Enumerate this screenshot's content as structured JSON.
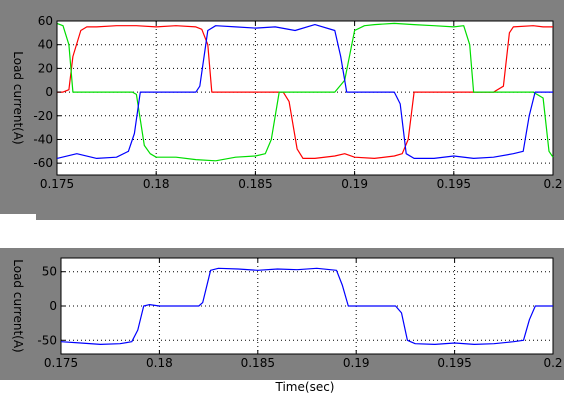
{
  "chart_data": [
    {
      "type": "line",
      "title": "",
      "xlabel": "",
      "ylabel": "Load current(A)",
      "xlim": [
        0.175,
        0.2
      ],
      "ylim": [
        -70,
        60
      ],
      "grid": true,
      "xticks": [
        "0.175",
        "0.18",
        "0.185",
        "0.19",
        "0.195",
        "0.2"
      ],
      "yticks": [
        "60",
        "40",
        "20",
        "0",
        "-20",
        "-40",
        "-60"
      ],
      "series": [
        {
          "color": "#ff0000",
          "x": [
            0.175,
            0.1753,
            0.1756,
            0.1758,
            0.1762,
            0.1765,
            0.177,
            0.178,
            0.179,
            0.18,
            0.181,
            0.182,
            0.1823,
            0.1826,
            0.1828,
            0.1831,
            0.184,
            0.185,
            0.186,
            0.1864,
            0.1867,
            0.1871,
            0.1874,
            0.188,
            0.189,
            0.1895,
            0.19,
            0.191,
            0.192,
            0.1924,
            0.1927,
            0.193,
            0.1934,
            0.194,
            0.195,
            0.196,
            0.197,
            0.1975,
            0.1978,
            0.198,
            0.199,
            0.1995,
            0.2
          ],
          "y": [
            0,
            0,
            2,
            30,
            52,
            55,
            55,
            56,
            56,
            55,
            56,
            55,
            53,
            40,
            0,
            0,
            0,
            0,
            0,
            0,
            -8,
            -48,
            -56,
            -56,
            -54,
            -52,
            -55,
            -56,
            -54,
            -52,
            -40,
            0,
            0,
            0,
            0,
            0,
            0,
            5,
            50,
            55,
            56,
            55,
            55
          ]
        },
        {
          "color": "#00dd00",
          "x": [
            0.175,
            0.1753,
            0.1756,
            0.1758,
            0.176,
            0.177,
            0.178,
            0.1788,
            0.179,
            0.1794,
            0.1797,
            0.18,
            0.181,
            0.182,
            0.183,
            0.184,
            0.185,
            0.1855,
            0.1858,
            0.1862,
            0.1865,
            0.187,
            0.188,
            0.189,
            0.1895,
            0.19,
            0.1905,
            0.191,
            0.192,
            0.193,
            0.194,
            0.195,
            0.1955,
            0.1958,
            0.196,
            0.1962,
            0.197,
            0.198,
            0.199,
            0.1995,
            0.1998,
            0.2
          ],
          "y": [
            58,
            56,
            40,
            0,
            0,
            0,
            0,
            0,
            -2,
            -45,
            -52,
            -55,
            -55,
            -57,
            -58,
            -55,
            -54,
            -52,
            -40,
            0,
            0,
            0,
            0,
            0,
            10,
            52,
            56,
            57,
            58,
            57,
            56,
            55,
            56,
            40,
            0,
            0,
            0,
            0,
            0,
            -5,
            -50,
            -55
          ]
        },
        {
          "color": "#0000ff",
          "x": [
            0.175,
            0.176,
            0.177,
            0.178,
            0.1786,
            0.1789,
            0.1792,
            0.1795,
            0.18,
            0.181,
            0.182,
            0.1822,
            0.1826,
            0.183,
            0.184,
            0.185,
            0.186,
            0.187,
            0.188,
            0.189,
            0.1893,
            0.1896,
            0.19,
            0.191,
            0.192,
            0.1923,
            0.1926,
            0.193,
            0.194,
            0.195,
            0.196,
            0.197,
            0.198,
            0.1985,
            0.1988,
            0.1991,
            0.1995,
            0.2
          ],
          "y": [
            -56,
            -52,
            -56,
            -55,
            -50,
            -35,
            0,
            0,
            0,
            0,
            0,
            5,
            52,
            56,
            55,
            54,
            55,
            52,
            57,
            52,
            30,
            0,
            0,
            0,
            0,
            -10,
            -52,
            -56,
            -56,
            -54,
            -56,
            -55,
            -52,
            -50,
            -20,
            0,
            0,
            0
          ]
        }
      ]
    },
    {
      "type": "line",
      "title": "",
      "xlabel": "Time(sec)",
      "ylabel": "Load current(A)",
      "xlim": [
        0.175,
        0.2
      ],
      "ylim": [
        -70,
        70
      ],
      "grid": true,
      "xticks": [
        "0.175",
        "0.18",
        "0.185",
        "0.19",
        "0.195",
        "0.2"
      ],
      "yticks": [
        "50",
        "0",
        "-50"
      ],
      "series": [
        {
          "color": "#0000ff",
          "x": [
            0.175,
            0.176,
            0.177,
            0.178,
            0.1786,
            0.1789,
            0.1792,
            0.1795,
            0.18,
            0.181,
            0.182,
            0.1822,
            0.1826,
            0.183,
            0.184,
            0.185,
            0.186,
            0.187,
            0.188,
            0.189,
            0.1893,
            0.1896,
            0.19,
            0.191,
            0.192,
            0.1923,
            0.1926,
            0.193,
            0.194,
            0.195,
            0.196,
            0.197,
            0.198,
            0.1985,
            0.1988,
            0.1991,
            0.1995,
            0.2
          ],
          "y": [
            -52,
            -54,
            -56,
            -55,
            -52,
            -35,
            0,
            2,
            0,
            0,
            0,
            5,
            52,
            55,
            54,
            52,
            54,
            53,
            55,
            52,
            30,
            0,
            0,
            0,
            0,
            -10,
            -50,
            -55,
            -56,
            -54,
            -56,
            -55,
            -52,
            -50,
            -20,
            0,
            0,
            0
          ]
        }
      ]
    }
  ]
}
